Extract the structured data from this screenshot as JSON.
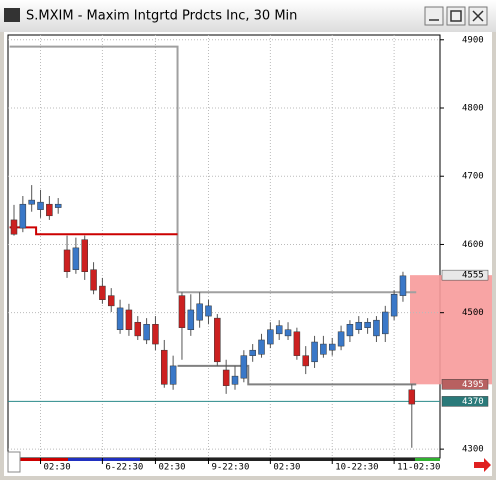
{
  "chart_data": {
    "type": "candlestick",
    "title": "S.MXIM - Maxim Intgrtd Prdcts Inc, 30 Min",
    "categories": [
      null,
      null,
      null,
      "02:30",
      null,
      null,
      null,
      null,
      null,
      null,
      "6-22:30",
      null,
      null,
      null,
      null,
      null,
      "02:30",
      null,
      null,
      null,
      null,
      null,
      "9-22:30",
      null,
      null,
      null,
      null,
      null,
      null,
      "02:30",
      null,
      null,
      null,
      null,
      null,
      null,
      "10-22:30",
      null,
      null,
      null,
      null,
      null,
      null,
      "11-02:30",
      null,
      null
    ],
    "open": [
      4636,
      4624,
      4659,
      4651,
      4659,
      4654,
      4592,
      4563,
      4607,
      4563,
      4539,
      4525,
      4475,
      4504,
      4486,
      4460,
      4483,
      4445,
      4395,
      4525,
      4475,
      4489,
      4495,
      4492,
      4416,
      4395,
      4404,
      4437,
      4439,
      4454,
      4469,
      4466,
      4472,
      4437,
      4428,
      4439,
      4445,
      4451,
      4466,
      4475,
      4478,
      4466,
      4469,
      4495,
      4525,
      4387
    ],
    "high": [
      4658,
      4671,
      4687,
      4680,
      4671,
      4668,
      4613,
      4610,
      4613,
      4574,
      4551,
      4536,
      4519,
      4513,
      4495,
      4492,
      4495,
      4460,
      4437,
      4530,
      4527,
      4530,
      4519,
      4498,
      4431,
      4422,
      4445,
      4454,
      4469,
      4486,
      4489,
      4486,
      4478,
      4451,
      4466,
      4466,
      4463,
      4481,
      4489,
      4495,
      4492,
      4495,
      4510,
      4533,
      4560,
      4395
    ],
    "low": [
      4613,
      4618,
      4648,
      4639,
      4636,
      4645,
      4551,
      4557,
      4548,
      4527,
      4513,
      4501,
      4469,
      4466,
      4460,
      4454,
      4445,
      4390,
      4387,
      4431,
      4466,
      4478,
      4483,
      4422,
      4381,
      4387,
      4398,
      4428,
      4434,
      4448,
      4460,
      4460,
      4431,
      4410,
      4419,
      4434,
      4437,
      4445,
      4457,
      4469,
      4469,
      4457,
      4457,
      4489,
      4516,
      4302
    ],
    "close": [
      4615,
      4659,
      4665,
      4662,
      4642,
      4659,
      4560,
      4595,
      4560,
      4533,
      4519,
      4510,
      4507,
      4475,
      4466,
      4483,
      4454,
      4395,
      4422,
      4478,
      4504,
      4513,
      4510,
      4428,
      4393,
      4407,
      4437,
      4445,
      4460,
      4475,
      4481,
      4475,
      4437,
      4422,
      4457,
      4454,
      4454,
      4472,
      4483,
      4486,
      4486,
      4489,
      4501,
      4527,
      4554,
      4366
    ],
    "up_color": "#3a78c8",
    "down_color": "#cc2020",
    "overlays": [
      {
        "color": "#a0a0a0",
        "values": [
          4890,
          4890,
          4890,
          4890,
          4890,
          4890,
          4890,
          4890,
          4890,
          4890,
          4890,
          4890,
          4890,
          4890,
          4890,
          4890,
          4890,
          4890,
          4890,
          4530,
          4530,
          4530,
          4530,
          4530,
          4530,
          4530,
          4530,
          4530,
          4530,
          4530,
          4530,
          4530,
          4530,
          4530,
          4530,
          4530,
          4530,
          4530,
          4530,
          4530,
          4530,
          4530,
          4530,
          4530,
          4530,
          4530
        ]
      },
      {
        "color": "#cc0000",
        "values": [
          4625,
          4625,
          4625,
          4615,
          4615,
          4615,
          4615,
          4615,
          4615,
          4615,
          4615,
          4615,
          4615,
          4615,
          4615,
          4615,
          4615,
          4615,
          4615,
          null,
          null,
          null,
          null,
          null,
          null,
          null,
          null,
          null,
          null,
          null,
          null,
          null,
          null,
          null,
          null,
          null,
          null,
          null,
          null,
          null,
          null,
          null,
          null,
          null,
          null,
          null
        ]
      },
      {
        "color": "#808080",
        "values": [
          null,
          null,
          null,
          null,
          null,
          null,
          null,
          null,
          null,
          null,
          null,
          null,
          null,
          null,
          null,
          null,
          null,
          null,
          null,
          4422,
          4422,
          4422,
          4422,
          4422,
          4422,
          4422,
          4422,
          4395,
          4395,
          4395,
          4395,
          4395,
          4395,
          4395,
          4395,
          4395,
          4395,
          4395,
          4395,
          4395,
          4395,
          4395,
          4395,
          4395,
          4395,
          4395
        ]
      }
    ],
    "ylim": [
      4287,
      4907
    ],
    "yticks": [
      4300,
      4500,
      4600,
      4700,
      4800,
      4900
    ],
    "grid": true,
    "last_price": 4370,
    "last_price_color": "#2a8a8a",
    "zone": [
      4395,
      4555
    ],
    "zone_color": "#f79a9a",
    "price_tags": [
      4555,
      4395,
      4370
    ],
    "price_tag_colors": [
      "#e8e8e8",
      "#b86060",
      "#2a7a7a"
    ]
  }
}
